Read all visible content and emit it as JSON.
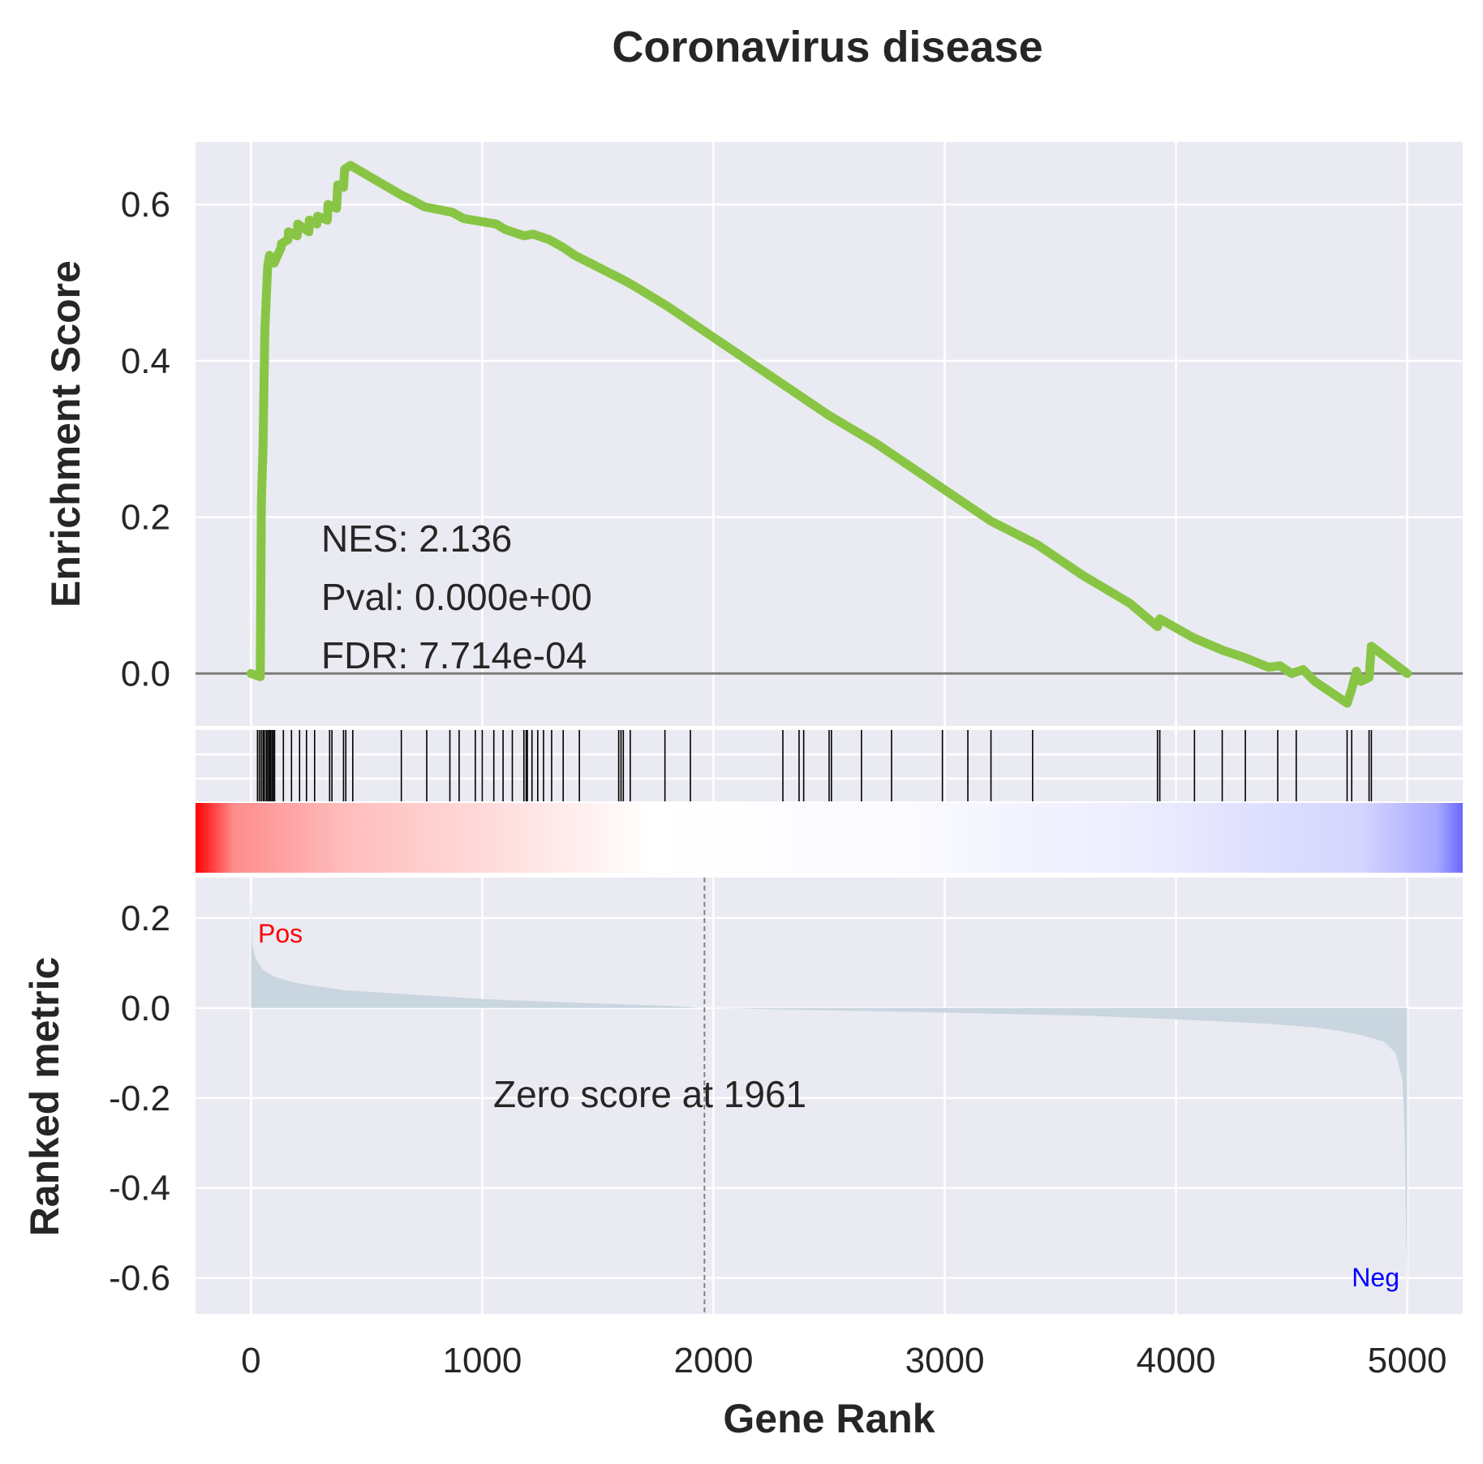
{
  "chart_data": {
    "type": "line",
    "title": "Coronavirus disease",
    "xlabel": "Gene Rank",
    "xlim": [
      -240,
      5240
    ],
    "xticks": [
      0,
      1000,
      2000,
      3000,
      4000,
      5000
    ],
    "xtick_labels": [
      "0",
      "1000",
      "2000",
      "3000",
      "4000",
      "5000"
    ],
    "grid": true,
    "background": "#eaeaf2",
    "enrichment": {
      "ylabel": "Enrichment Score",
      "ylim": [
        -0.067,
        0.68
      ],
      "yticks": [
        0.0,
        0.2,
        0.4,
        0.6
      ],
      "ytick_labels": [
        "0.0",
        "0.2",
        "0.4",
        "0.6"
      ],
      "color": "#88c544",
      "zero_line_color": "#808080",
      "series": [
        {
          "x": [
            0,
            40,
            45,
            52,
            60,
            72,
            80,
            88,
            100,
            130,
            132,
            160,
            162,
            200,
            202,
            250,
            252,
            285,
            288,
            330,
            333,
            370,
            375,
            400,
            405,
            430,
            650,
            700,
            750,
            820,
            870,
            920,
            1000,
            1060,
            1100,
            1180,
            1220,
            1290,
            1350,
            1400,
            1600,
            1650,
            1800,
            2000,
            2300,
            2500,
            2700,
            2900,
            3000,
            3200,
            3400,
            3600,
            3800,
            3920,
            3930,
            4080,
            4200,
            4300,
            4400,
            4450,
            4500,
            4550,
            4600,
            4700,
            4740,
            4760,
            4780,
            4800,
            4835,
            4845,
            5000
          ],
          "y": [
            0.0,
            -0.004,
            0.22,
            0.29,
            0.44,
            0.52,
            0.535,
            0.53,
            0.525,
            0.545,
            0.55,
            0.555,
            0.565,
            0.56,
            0.575,
            0.565,
            0.58,
            0.575,
            0.585,
            0.58,
            0.6,
            0.595,
            0.625,
            0.622,
            0.645,
            0.65,
            0.612,
            0.605,
            0.597,
            0.593,
            0.59,
            0.582,
            0.578,
            0.575,
            0.568,
            0.56,
            0.562,
            0.555,
            0.545,
            0.535,
            0.505,
            0.497,
            0.47,
            0.43,
            0.37,
            0.33,
            0.295,
            0.255,
            0.235,
            0.195,
            0.165,
            0.125,
            0.09,
            0.06,
            0.07,
            0.045,
            0.03,
            0.02,
            0.008,
            0.01,
            0.0,
            0.005,
            -0.01,
            -0.03,
            -0.038,
            -0.02,
            0.003,
            -0.01,
            -0.005,
            0.035,
            0.0
          ]
        }
      ],
      "stats": [
        "NES: 2.136",
        "Pval: 0.000e+00",
        "FDR: 7.714e-04"
      ]
    },
    "hits": [
      28,
      36,
      44,
      52,
      58,
      66,
      72,
      78,
      84,
      90,
      96,
      102,
      140,
      175,
      210,
      240,
      275,
      340,
      350,
      400,
      410,
      440,
      650,
      760,
      860,
      900,
      970,
      1000,
      1050,
      1090,
      1130,
      1180,
      1190,
      1195,
      1215,
      1240,
      1265,
      1300,
      1350,
      1420,
      1590,
      1600,
      1610,
      1640,
      1790,
      1900,
      2300,
      2370,
      2390,
      2500,
      2510,
      2640,
      2770,
      2990,
      3100,
      3200,
      3380,
      3920,
      3930,
      4080,
      4200,
      4300,
      4440,
      4520,
      4740,
      4760,
      4835,
      4845
    ],
    "ranked_metric": {
      "ylabel": "Ranked metric",
      "ylim": [
        -0.68,
        0.29
      ],
      "yticks": [
        0.2,
        0.0,
        -0.2,
        -0.4,
        -0.6
      ],
      "ytick_labels": [
        "0.2",
        "0.0",
        "-0.2",
        "-0.4",
        "-0.6"
      ],
      "fill_color": "#c9d6df",
      "x": [
        0,
        5,
        20,
        50,
        100,
        200,
        400,
        700,
        1000,
        1400,
        1800,
        1961,
        2400,
        3000,
        3600,
        4000,
        4400,
        4600,
        4700,
        4800,
        4900,
        4950,
        4980,
        4990,
        4995,
        5000
      ],
      "y": [
        0.25,
        0.14,
        0.11,
        0.085,
        0.07,
        0.055,
        0.04,
        0.03,
        0.02,
        0.012,
        0.005,
        0.0,
        -0.004,
        -0.01,
        -0.017,
        -0.025,
        -0.035,
        -0.043,
        -0.05,
        -0.06,
        -0.075,
        -0.1,
        -0.16,
        -0.3,
        -0.5,
        -0.64
      ],
      "zero_cross": 1961,
      "zero_note": "Zero score at 1961",
      "pos_label": "Pos",
      "neg_label": "Neg",
      "pos_color": "#ff0000",
      "neg_color": "#0000ff"
    }
  }
}
